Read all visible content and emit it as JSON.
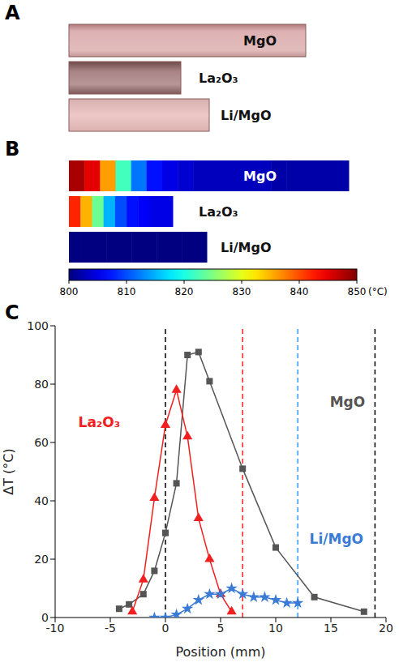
{
  "panel_labels": [
    "A",
    "B",
    "C"
  ],
  "photos": {
    "samples": [
      "MgO",
      "La₂O₃",
      "Li/MgO"
    ]
  },
  "thermal_images": {
    "samples": [
      {
        "name": "MgO",
        "temperatures": [
          848,
          845,
          836,
          822,
          812,
          807,
          805,
          804,
          803,
          803,
          803,
          803,
          803,
          802,
          802,
          802,
          802,
          802
        ]
      },
      {
        "name": "La₂O₃",
        "temperatures": [
          842,
          835,
          824,
          815,
          810,
          807,
          806,
          805,
          805
        ]
      },
      {
        "name": "Li/MgO",
        "temperatures": [
          800,
          800,
          800,
          800,
          800,
          800,
          800,
          800,
          800,
          800,
          800
        ]
      }
    ],
    "colorbar": {
      "range": [
        800,
        850
      ],
      "ticks": [
        800,
        810,
        820,
        830,
        840,
        850
      ],
      "unit_label": "(°C)"
    }
  },
  "chart_data": {
    "type": "line",
    "x_label": "Position (mm)",
    "y_label": "ΔT (°C)",
    "xlim": [
      -10,
      20
    ],
    "xticks": [
      -10,
      -5,
      0,
      5,
      10,
      15,
      20
    ],
    "ylim": [
      0,
      100
    ],
    "yticks": [
      0,
      20,
      40,
      60,
      80,
      100
    ],
    "series": [
      {
        "name": "MgO",
        "color": "#555555",
        "marker": "square",
        "x": [
          -4.2,
          -3.3,
          -2,
          -1,
          0,
          1,
          2,
          3,
          4,
          7,
          10,
          13.5,
          18
        ],
        "values": [
          3,
          4.5,
          8,
          16,
          29,
          46,
          90,
          91,
          81,
          51,
          24,
          7,
          2
        ],
        "label_position": [
          16.5,
          74
        ]
      },
      {
        "name": "La₂O₃",
        "color": "#f02020",
        "marker": "triangle",
        "x": [
          -3,
          -2,
          -1,
          0,
          1,
          2,
          3,
          4,
          5,
          6
        ],
        "values": [
          2,
          13,
          41,
          66,
          78,
          62,
          34,
          20,
          8,
          2
        ],
        "label_position": [
          -6,
          67
        ]
      },
      {
        "name": "Li/MgO",
        "color": "#3a7bd5",
        "marker": "star",
        "x": [
          -1,
          0,
          1,
          2,
          3,
          4,
          5,
          6,
          7,
          8,
          9,
          10,
          11,
          12
        ],
        "values": [
          0,
          0,
          1,
          3,
          6,
          8,
          8,
          10,
          8,
          7,
          7,
          6,
          5,
          5
        ],
        "label_position": [
          15.5,
          27
        ]
      }
    ],
    "vlines": [
      {
        "x": 0,
        "color": "#000000",
        "line_style": "dashed"
      },
      {
        "x": 7,
        "color": "#ff2020",
        "line_style": "dashed"
      },
      {
        "x": 12,
        "color": "#3399ff",
        "line_style": "dashed"
      },
      {
        "x": 19,
        "color": "#000000",
        "line_style": "dashed"
      }
    ]
  }
}
